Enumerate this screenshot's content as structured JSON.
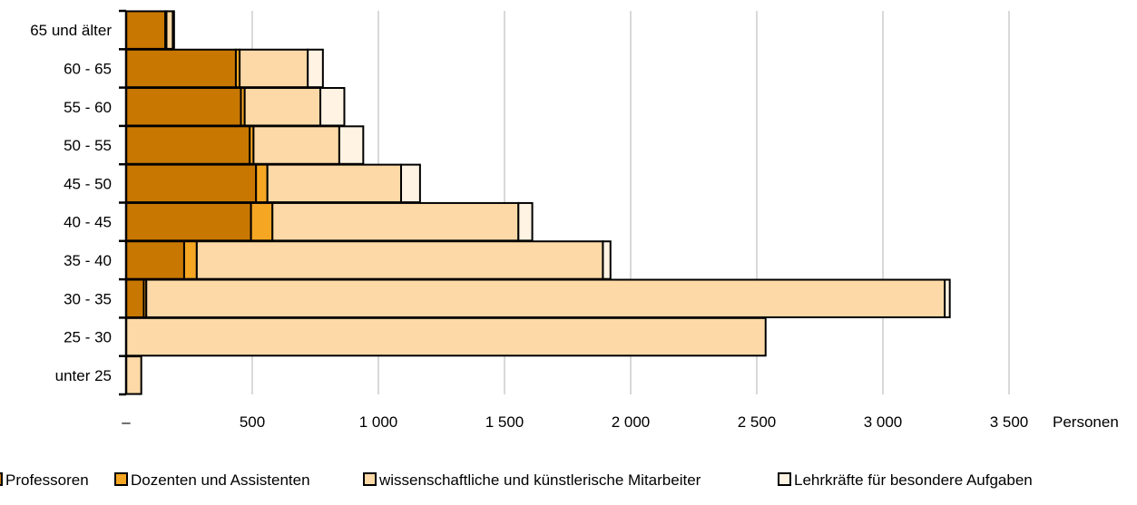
{
  "chart_data": {
    "type": "bar",
    "orientation": "horizontal",
    "stacked": true,
    "categories": [
      "65 und älter",
      "60 - 65",
      "55 - 60",
      "50 - 55",
      "45 - 50",
      "40 - 45",
      "35 - 40",
      "30 - 35",
      "25 - 30",
      "unter 25"
    ],
    "series": [
      {
        "name": "Professoren",
        "color": "#c87800",
        "values": [
          155,
          435,
          455,
          490,
          515,
          495,
          230,
          70,
          0,
          0
        ]
      },
      {
        "name": "Dozenten und Assistenten",
        "color": "#f5a623",
        "values": [
          5,
          15,
          15,
          15,
          45,
          85,
          50,
          10,
          0,
          0
        ]
      },
      {
        "name": "wissenschaftliche und künstlerische Mitarbeiter",
        "color": "#fcd9a6",
        "values": [
          25,
          270,
          300,
          340,
          530,
          975,
          1610,
          3165,
          2535,
          60
        ]
      },
      {
        "name": "Lehrkräfte für besondere Aufgaben",
        "color": "#fff3e3",
        "values": [
          5,
          60,
          95,
          95,
          75,
          55,
          30,
          20,
          0,
          0
        ]
      }
    ],
    "x_ticks": [
      0,
      500,
      1000,
      1500,
      2000,
      2500,
      3000,
      3500
    ],
    "x_tick_labels": [
      "–",
      "500",
      "1 000",
      "1 500",
      "2 000",
      "2 500",
      "3 000",
      "3 500"
    ],
    "xlabel": "Personen",
    "xlim": [
      0,
      3500
    ],
    "grid": "vertical",
    "legend_position": "bottom"
  },
  "legend": {
    "items": [
      "Professoren",
      "Dozenten und Assistenten",
      "wissenschaftliche und künstlerische Mitarbeiter",
      "Lehrkräfte für besondere Aufgaben"
    ]
  }
}
